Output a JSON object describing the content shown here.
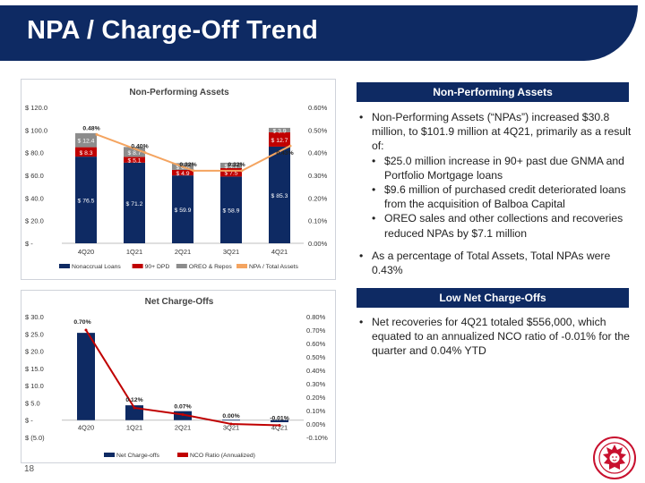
{
  "page": {
    "title": "NPA / Charge-Off Trend",
    "page_number": "18"
  },
  "npa_panel": {
    "header": "Non-Performing Assets",
    "bullets": [
      {
        "level": 1,
        "text": "Non-Performing Assets (“NPAs”) increased $30.8 million, to $101.9 million at 4Q21, primarily as a result of:"
      },
      {
        "level": 2,
        "text": "$25.0 million increase in 90+ past due GNMA and Portfolio Mortgage loans"
      },
      {
        "level": 2,
        "text": "$9.6 million of purchased credit deteriorated loans from the acquisition of Balboa Capital"
      },
      {
        "level": 2,
        "text": "OREO sales and other collections and recoveries reduced NPAs by $7.1 million"
      },
      {
        "level": 1,
        "gap": true,
        "text": "As a percentage of Total Assets, Total NPAs were 0.43%"
      }
    ]
  },
  "nco_panel": {
    "header": "Low Net Charge-Offs",
    "bullets": [
      {
        "level": 1,
        "text": "Net recoveries for 4Q21 totaled $556,000, which equated to an annualized NCO ratio of -0.01% for the quarter and 0.04% YTD"
      }
    ]
  },
  "colors": {
    "navy": "#0e2a63",
    "red": "#c00000",
    "gray": "#8c8c8c",
    "orange": "#f4a460",
    "bar_navy": "#0e2a63"
  },
  "chart_data": [
    {
      "type": "bar",
      "stacked": true,
      "title": "Non-Performing Assets",
      "categories": [
        "4Q20",
        "1Q21",
        "2Q21",
        "3Q21",
        "4Q21"
      ],
      "series": [
        {
          "name": "Nonaccrual Loans",
          "values": [
            76.5,
            71.2,
            59.9,
            58.9,
            85.3
          ],
          "labels": [
            "$ 76.5",
            "$ 71.2",
            "$ 59.9",
            "$ 58.9",
            "$ 85.3"
          ],
          "color": "#0e2a63"
        },
        {
          "name": "90+ DPD",
          "values": [
            8.3,
            5.1,
            4.9,
            7.5,
            12.7
          ],
          "labels": [
            "$ 8.3",
            "$ 5.1",
            "$ 4.9",
            "$ 7.5",
            "$ 12.7"
          ],
          "color": "#c00000"
        },
        {
          "name": "OREO & Repos",
          "values": [
            12.4,
            8.7,
            6.0,
            4.7,
            3.9
          ],
          "labels": [
            "$ 12.4",
            "$ 8.7",
            "$ 6.0",
            "$ 4.7",
            "$ 3.9"
          ],
          "color": "#8c8c8c"
        },
        {
          "name": "NPA / Total Assets",
          "axis": "right",
          "type": "line",
          "values": [
            0.48,
            0.4,
            0.32,
            0.32,
            0.43
          ],
          "labels": [
            "0.48%",
            "0.40%",
            "0.32%",
            "0.32%",
            "0.43%"
          ],
          "color": "#f4a460"
        }
      ],
      "ylim": [
        0,
        120
      ],
      "yticks": [
        "$ -",
        "$ 20.0",
        "$ 40.0",
        "$ 60.0",
        "$ 80.0",
        "$ 100.0",
        "$ 120.0"
      ],
      "y2lim": [
        0,
        0.6
      ],
      "y2ticks": [
        "0.00%",
        "0.10%",
        "0.20%",
        "0.30%",
        "0.40%",
        "0.50%",
        "0.60%"
      ],
      "legend": "bottom",
      "grid": false
    },
    {
      "type": "bar",
      "title": "Net Charge-Offs",
      "categories": [
        "4Q20",
        "1Q21",
        "2Q21",
        "3Q21",
        "4Q21"
      ],
      "series": [
        {
          "name": "Net Charge-offs",
          "values": [
            25.3,
            4.3,
            2.6,
            0.1,
            -0.6
          ],
          "color": "#0e2a63"
        },
        {
          "name": "NCO Ratio (Annualized)",
          "axis": "right",
          "type": "line",
          "values": [
            0.7,
            0.12,
            0.07,
            0.0,
            -0.01
          ],
          "labels": [
            "0.70%",
            "0.12%",
            "0.07%",
            "0.00%",
            "-0.01%"
          ],
          "color": "#c00000"
        }
      ],
      "ylim": [
        -5,
        30
      ],
      "yticks": [
        "$ (5.0)",
        "$ -",
        "$ 5.0",
        "$ 10.0",
        "$ 15.0",
        "$ 20.0",
        "$ 25.0",
        "$ 30.0"
      ],
      "y2lim": [
        -0.1,
        0.8
      ],
      "y2ticks": [
        "-0.10%",
        "0.00%",
        "0.10%",
        "0.20%",
        "0.30%",
        "0.40%",
        "0.50%",
        "0.60%",
        "0.70%",
        "0.80%"
      ],
      "legend": "bottom",
      "grid": false
    }
  ]
}
